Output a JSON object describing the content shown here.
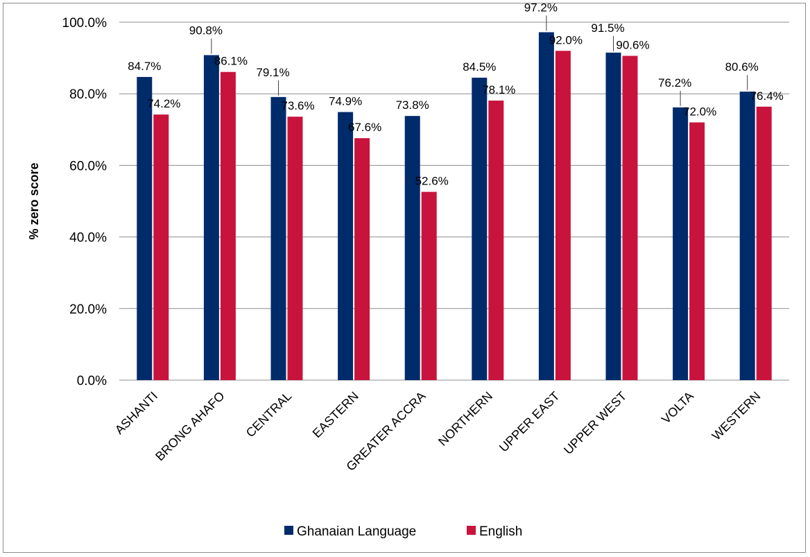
{
  "chart_data": {
    "type": "bar",
    "categories": [
      "ASHANTI",
      "BRONG AHAFO",
      "CENTRAL",
      "EASTERN",
      "GREATER ACCRA",
      "NORTHERN",
      "UPPER EAST",
      "UPPER WEST",
      "VOLTA",
      "WESTERN"
    ],
    "series": [
      {
        "name": "Ghanaian Language",
        "color": "#002b6b",
        "values": [
          84.7,
          90.8,
          79.1,
          74.9,
          73.8,
          84.5,
          97.2,
          91.5,
          76.2,
          80.6
        ]
      },
      {
        "name": "English",
        "color": "#c8143c",
        "values": [
          74.2,
          86.1,
          73.6,
          67.6,
          52.6,
          78.1,
          92.0,
          90.6,
          72.0,
          76.4
        ]
      }
    ],
    "ylabel": "% zero score",
    "xlabel": "",
    "ylim": [
      0,
      100
    ],
    "yticks": [
      "0.0%",
      "20.0%",
      "40.0%",
      "60.0%",
      "80.0%",
      "100.0%"
    ],
    "data_labels": [
      [
        "84.7%",
        "74.2%"
      ],
      [
        "90.8%",
        "86.1%"
      ],
      [
        "79.1%",
        "73.6%"
      ],
      [
        "74.9%",
        "67.6%"
      ],
      [
        "73.8%",
        "52.6%"
      ],
      [
        "84.5%",
        "78.1%"
      ],
      [
        "97.2%",
        "92.0%"
      ],
      [
        "91.5%",
        "90.6%"
      ],
      [
        "76.2%",
        "72.0%"
      ],
      [
        "80.6%",
        "76.4%"
      ]
    ],
    "grid": true,
    "legend_position": "bottom"
  }
}
